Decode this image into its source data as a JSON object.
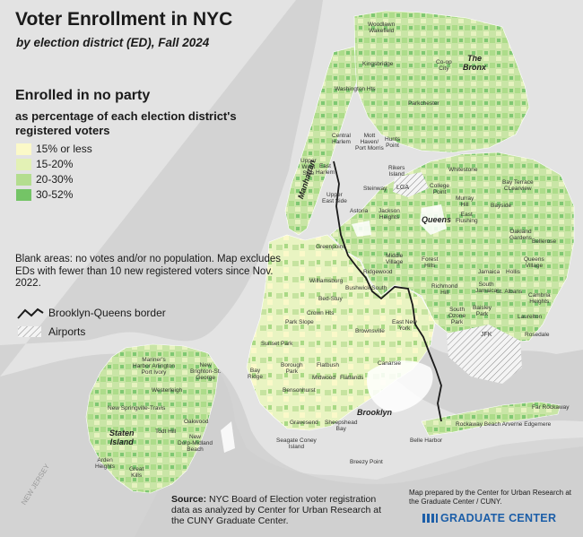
{
  "title": "Voter Enrollment in NYC",
  "subtitle": "by election district (ED), Fall 2024",
  "legend": {
    "title": "Enrolled in no party",
    "subtitle": "as percentage of each election district's registered voters",
    "items": [
      {
        "label": "15% or less",
        "color": "#fbf9c8"
      },
      {
        "label": "15-20%",
        "color": "#e3f1b5"
      },
      {
        "label": "20-30%",
        "color": "#b4dd8f"
      },
      {
        "label": "30-52%",
        "color": "#74c466"
      }
    ]
  },
  "note": "Blank areas: no votes and/or no population. Map excludes EDs with fewer than 10 new registered voters since Nov. 2022.",
  "border_legend": "Brooklyn-Queens border",
  "airports_legend": "Airports",
  "boroughs": [
    "The",
    "Bronx",
    "Manhattan",
    "Queens",
    "Brooklyn",
    "Staten",
    "Island"
  ],
  "airports": [
    "JFK",
    "LGA"
  ],
  "neighborhoods": [
    {
      "name": "Woodlawn\nWakefield",
      "pos": [
        410,
        24
      ]
    },
    {
      "name": "Kingsbridge",
      "pos": [
        404,
        68
      ]
    },
    {
      "name": "Co-op\nCity",
      "pos": [
        486,
        66
      ]
    },
    {
      "name": "Washington Hts",
      "pos": [
        373,
        96
      ]
    },
    {
      "name": "Parkchester",
      "pos": [
        455,
        112
      ]
    },
    {
      "name": "Central\nHarlem",
      "pos": [
        370,
        148
      ]
    },
    {
      "name": "Mott\nHaven/\nPort Morris",
      "pos": [
        396,
        148
      ]
    },
    {
      "name": "Hunts\nPoint",
      "pos": [
        429,
        152
      ]
    },
    {
      "name": "Upper\nWest\nSide",
      "pos": [
        335,
        176
      ]
    },
    {
      "name": "East\nHarlem",
      "pos": [
        352,
        182
      ]
    },
    {
      "name": "Rikers\nIsland",
      "pos": [
        433,
        184
      ]
    },
    {
      "name": "Whitestone",
      "pos": [
        500,
        186
      ]
    },
    {
      "name": "Steinway",
      "pos": [
        405,
        207
      ]
    },
    {
      "name": "College\nPoint",
      "pos": [
        479,
        204
      ]
    },
    {
      "name": "Bay Terrace\nCLearview",
      "pos": [
        560,
        200
      ]
    },
    {
      "name": "Murray\nHill",
      "pos": [
        508,
        218
      ]
    },
    {
      "name": "Upper\nEast Side",
      "pos": [
        359,
        214
      ]
    },
    {
      "name": "Astoria",
      "pos": [
        390,
        232
      ]
    },
    {
      "name": "Jackson\nHeights",
      "pos": [
        422,
        232
      ]
    },
    {
      "name": "East\nFlushing",
      "pos": [
        508,
        236
      ]
    },
    {
      "name": "Bayside",
      "pos": [
        547,
        226
      ]
    },
    {
      "name": "Oakland\nGardens",
      "pos": [
        568,
        255
      ]
    },
    {
      "name": "Bellerose",
      "pos": [
        593,
        266
      ]
    },
    {
      "name": "Greenpoint",
      "pos": [
        352,
        272
      ]
    },
    {
      "name": "Middle\nVillage",
      "pos": [
        430,
        282
      ]
    },
    {
      "name": "Forest\nHills",
      "pos": [
        470,
        286
      ]
    },
    {
      "name": "Queens\nVillage",
      "pos": [
        584,
        286
      ]
    },
    {
      "name": "Ridgewood",
      "pos": [
        405,
        300
      ]
    },
    {
      "name": "Jamaica",
      "pos": [
        533,
        300
      ]
    },
    {
      "name": "Hollis",
      "pos": [
        564,
        300
      ]
    },
    {
      "name": "Williamsburg",
      "pos": [
        345,
        310
      ]
    },
    {
      "name": "Bushwick South",
      "pos": [
        385,
        318
      ]
    },
    {
      "name": "Richmond\nHill",
      "pos": [
        481,
        316
      ]
    },
    {
      "name": "South\nJamaica",
      "pos": [
        530,
        314
      ]
    },
    {
      "name": "St. Albans",
      "pos": [
        553,
        322
      ]
    },
    {
      "name": "Cambria\nHeights",
      "pos": [
        589,
        326
      ]
    },
    {
      "name": "Bed-Stuy",
      "pos": [
        355,
        330
      ]
    },
    {
      "name": "Crown Hts",
      "pos": [
        342,
        346
      ]
    },
    {
      "name": "South\nOzone\nPark",
      "pos": [
        500,
        342
      ]
    },
    {
      "name": "Baisley\nPark",
      "pos": [
        527,
        340
      ]
    },
    {
      "name": "Park Slope",
      "pos": [
        318,
        356
      ]
    },
    {
      "name": "East New\nYork",
      "pos": [
        437,
        356
      ]
    },
    {
      "name": "Laurelton",
      "pos": [
        577,
        350
      ]
    },
    {
      "name": "Brownsville",
      "pos": [
        396,
        366
      ]
    },
    {
      "name": "Rosedale",
      "pos": [
        585,
        370
      ]
    },
    {
      "name": "Sunset Park",
      "pos": [
        291,
        380
      ]
    },
    {
      "name": "Borough\nPark",
      "pos": [
        313,
        404
      ]
    },
    {
      "name": "Canarsie",
      "pos": [
        421,
        402
      ]
    },
    {
      "name": "Bay\nRidge",
      "pos": [
        276,
        410
      ]
    },
    {
      "name": "Flatbush",
      "pos": [
        353,
        404
      ]
    },
    {
      "name": "Midwood",
      "pos": [
        348,
        418
      ]
    },
    {
      "name": "Flatlands",
      "pos": [
        379,
        418
      ]
    },
    {
      "name": "Bensonhurst",
      "pos": [
        315,
        432
      ]
    },
    {
      "name": "Gravesend",
      "pos": [
        323,
        468
      ]
    },
    {
      "name": "Sheepshead\nBay",
      "pos": [
        362,
        468
      ]
    },
    {
      "name": "Seagate Coney\nIsland",
      "pos": [
        308,
        488
      ]
    },
    {
      "name": "Far Rockaway",
      "pos": [
        593,
        451
      ]
    },
    {
      "name": "Rockaway Beach Arverne Edgemere",
      "pos": [
        508,
        470
      ]
    },
    {
      "name": "Belle Harbor",
      "pos": [
        457,
        488
      ]
    },
    {
      "name": "Breezy Point",
      "pos": [
        390,
        512
      ]
    },
    {
      "name": "Mariner's\nHarbor Arlington\nPort Ivory",
      "pos": [
        148,
        398
      ]
    },
    {
      "name": "New\nBrighton-St.\nGeorge",
      "pos": [
        212,
        404
      ]
    },
    {
      "name": "Westerleigh",
      "pos": [
        169,
        432
      ]
    },
    {
      "name": "New Springville-Travis",
      "pos": [
        120,
        452
      ]
    },
    {
      "name": "Todt Hill",
      "pos": [
        173,
        478
      ]
    },
    {
      "name": "Oakwood",
      "pos": [
        205,
        467
      ]
    },
    {
      "name": "New\nDorp-Midland\nBeach",
      "pos": [
        198,
        484
      ]
    },
    {
      "name": "Arden\nHeights",
      "pos": [
        106,
        510
      ]
    },
    {
      "name": "Great\nKills",
      "pos": [
        144,
        520
      ]
    }
  ],
  "source": {
    "label": "Source:",
    "text": "NYC Board of Election voter registration data as analyzed by Center for Urban Research at the CUNY Graduate Center."
  },
  "credit": "Map prepared by the Center for Urban Research at the Graduate Center / CUNY.",
  "logo_text": "GRADUATE CENTER",
  "nj_label": "NEW JERSEY"
}
